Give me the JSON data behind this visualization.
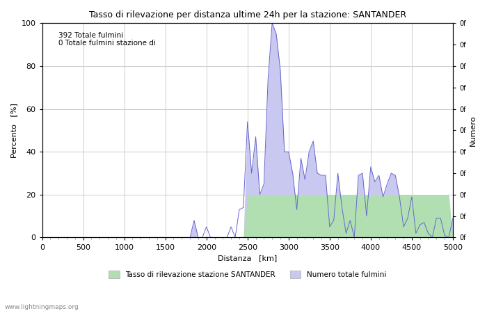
{
  "title": "Tasso di rilevazione per distanza ultime 24h per la stazione: SANTANDER",
  "xlabel": "Distanza   [km]",
  "ylabel_left": "Percento   [%]",
  "ylabel_right": "Numero",
  "annotation_line1": "392 Totale fulmini",
  "annotation_line2": "0 Totale fulmini stazione di",
  "xlim": [
    0,
    5000
  ],
  "ylim": [
    0,
    100
  ],
  "xticks": [
    0,
    500,
    1000,
    1500,
    2000,
    2500,
    3000,
    3500,
    4000,
    4500,
    5000
  ],
  "yticks_left": [
    0,
    20,
    40,
    60,
    80,
    100
  ],
  "right_ytick_labels": [
    "0f",
    "0f",
    "0f",
    "0f",
    "0f",
    "0f",
    "0f",
    "0f",
    "0f",
    "0f",
    "0f"
  ],
  "legend_label1": "Tasso di rilevazione stazione SANTANDER",
  "legend_label2": "Numero totale fulmini",
  "watermark": "www.lightningmaps.org",
  "fill_color_green": "#b2dfb2",
  "fill_color_blue": "#c8c8f0",
  "line_color": "#6666cc",
  "background_color": "#ffffff",
  "grid_color": "#cccccc",
  "x_distances": [
    0,
    50,
    100,
    150,
    200,
    250,
    300,
    350,
    400,
    450,
    500,
    550,
    600,
    650,
    700,
    750,
    800,
    850,
    900,
    950,
    1000,
    1050,
    1100,
    1150,
    1200,
    1250,
    1300,
    1350,
    1400,
    1450,
    1500,
    1550,
    1600,
    1650,
    1700,
    1750,
    1800,
    1850,
    1900,
    1950,
    2000,
    2050,
    2100,
    2150,
    2200,
    2250,
    2300,
    2350,
    2400,
    2450,
    2500,
    2550,
    2600,
    2650,
    2700,
    2750,
    2800,
    2850,
    2900,
    2950,
    3000,
    3050,
    3100,
    3150,
    3200,
    3250,
    3300,
    3350,
    3400,
    3450,
    3500,
    3550,
    3600,
    3650,
    3700,
    3750,
    3800,
    3850,
    3900,
    3950,
    4000,
    4050,
    4100,
    4150,
    4200,
    4250,
    4300,
    4350,
    4400,
    4450,
    4500,
    4550,
    4600,
    4650,
    4700,
    4750,
    4800,
    4850,
    4900,
    4950,
    5000
  ],
  "y_green": [
    0,
    0,
    0,
    0,
    0,
    0,
    0,
    0,
    0,
    0,
    0,
    0,
    0,
    0,
    0,
    0,
    0,
    0,
    0,
    0,
    0,
    0,
    0,
    0,
    0,
    0,
    0,
    0,
    0,
    0,
    0,
    0,
    0,
    0,
    0,
    0,
    0,
    0,
    0,
    0,
    0,
    0,
    0,
    0,
    0,
    0,
    0,
    0,
    0,
    0,
    20,
    20,
    20,
    20,
    20,
    20,
    20,
    20,
    20,
    20,
    20,
    20,
    20,
    20,
    20,
    20,
    20,
    20,
    20,
    20,
    20,
    20,
    20,
    20,
    20,
    20,
    20,
    20,
    20,
    20,
    20,
    20,
    20,
    20,
    20,
    20,
    20,
    20,
    20,
    20,
    20,
    20,
    20,
    20,
    20,
    20,
    20,
    20,
    20,
    20,
    0
  ],
  "y_blue": [
    0,
    0,
    0,
    0,
    0,
    0,
    0,
    0,
    0,
    0,
    0,
    0,
    0,
    0,
    0,
    0,
    0,
    0,
    0,
    0,
    0,
    0,
    0,
    0,
    0,
    0,
    0,
    0,
    0,
    0,
    0,
    0,
    0,
    0,
    0,
    0,
    0,
    8,
    0,
    0,
    0,
    0,
    0,
    0,
    0,
    0,
    0,
    0,
    0,
    0,
    54,
    30,
    47,
    20,
    25,
    74,
    100,
    95,
    78,
    40,
    40,
    30,
    13,
    37,
    27,
    40,
    45,
    30,
    29,
    29,
    5,
    8,
    30,
    14,
    2,
    8,
    0,
    29,
    30,
    10,
    33,
    26,
    29,
    19,
    25,
    30,
    29,
    19,
    5,
    9,
    19,
    2,
    6,
    7,
    2,
    0,
    9,
    9,
    1,
    0,
    9
  ],
  "y_line": [
    0,
    0,
    0,
    0,
    0,
    0,
    0,
    0,
    0,
    0,
    0,
    0,
    0,
    0,
    0,
    0,
    0,
    0,
    0,
    0,
    0,
    0,
    0,
    0,
    0,
    0,
    0,
    0,
    0,
    0,
    0,
    0,
    0,
    0,
    0,
    0,
    0,
    8,
    0,
    0,
    5,
    0,
    0,
    0,
    0,
    0,
    5,
    0,
    13,
    14,
    54,
    30,
    47,
    20,
    25,
    74,
    100,
    95,
    78,
    40,
    40,
    30,
    13,
    37,
    27,
    40,
    45,
    30,
    29,
    29,
    5,
    8,
    30,
    14,
    2,
    8,
    0,
    29,
    30,
    10,
    33,
    26,
    29,
    19,
    25,
    30,
    29,
    19,
    5,
    9,
    19,
    2,
    6,
    7,
    2,
    0,
    9,
    9,
    1,
    0,
    9
  ]
}
